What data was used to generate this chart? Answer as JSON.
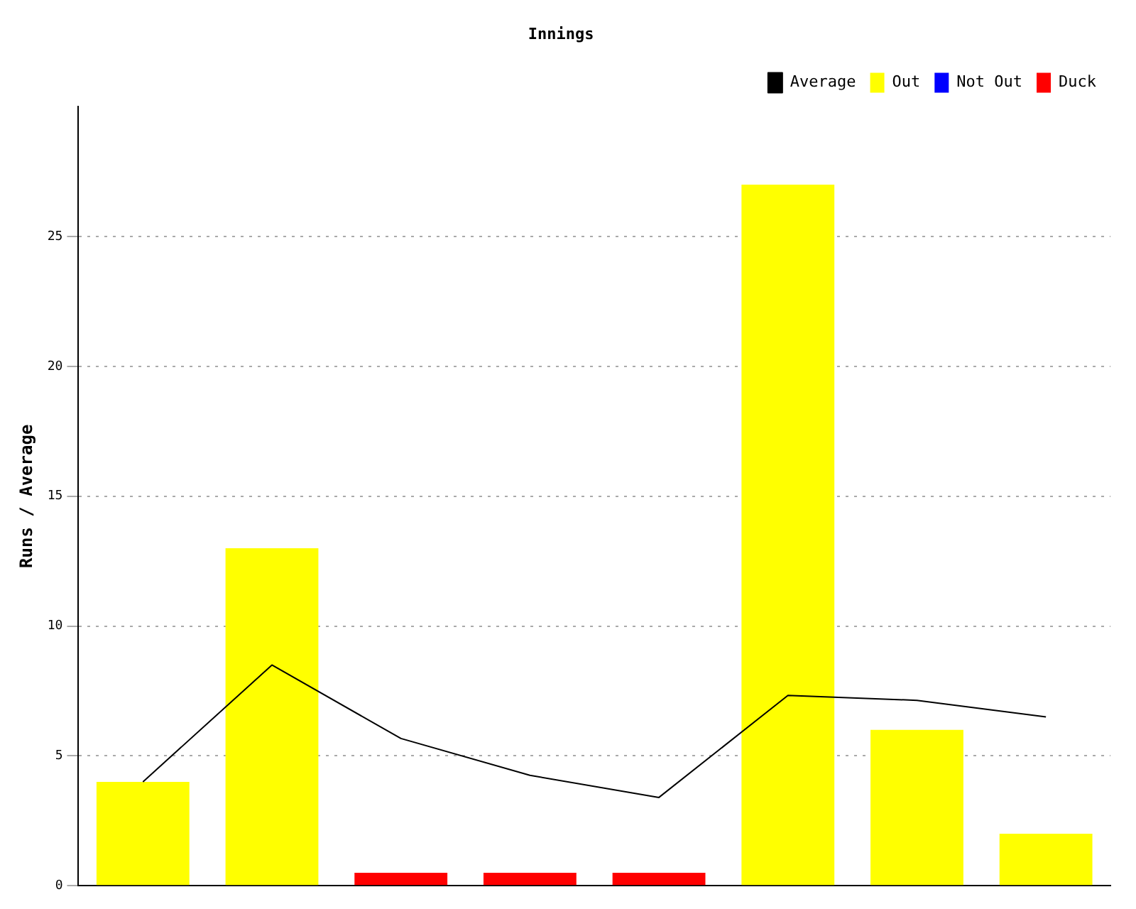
{
  "chart_data": {
    "type": "bar",
    "title": "Innings",
    "ylabel": "Runs / Average",
    "categories": [
      null,
      null,
      null,
      null,
      null,
      null,
      null,
      null
    ],
    "series": [
      {
        "name": "Average",
        "type": "line",
        "color": "#000000",
        "values": [
          4,
          8.5,
          5.67,
          4.25,
          3.4,
          7.33,
          7.14,
          6.5
        ]
      },
      {
        "name": "Out",
        "color": "#ffff00",
        "values": [
          4,
          13,
          null,
          null,
          null,
          27,
          6,
          2
        ]
      },
      {
        "name": "Not Out",
        "color": "#0000ff",
        "values": [
          null,
          null,
          null,
          null,
          null,
          null,
          null,
          null
        ]
      },
      {
        "name": "Duck",
        "color": "#ff0000",
        "values": [
          null,
          null,
          0.5,
          0.5,
          0.5,
          null,
          null,
          null
        ]
      }
    ],
    "stacked": true,
    "ylim": [
      0,
      30
    ],
    "yticks": [
      0,
      5,
      10,
      15,
      20,
      25
    ],
    "grid": "y",
    "legend": "top right",
    "marker": "none",
    "tick_labels": "y"
  }
}
